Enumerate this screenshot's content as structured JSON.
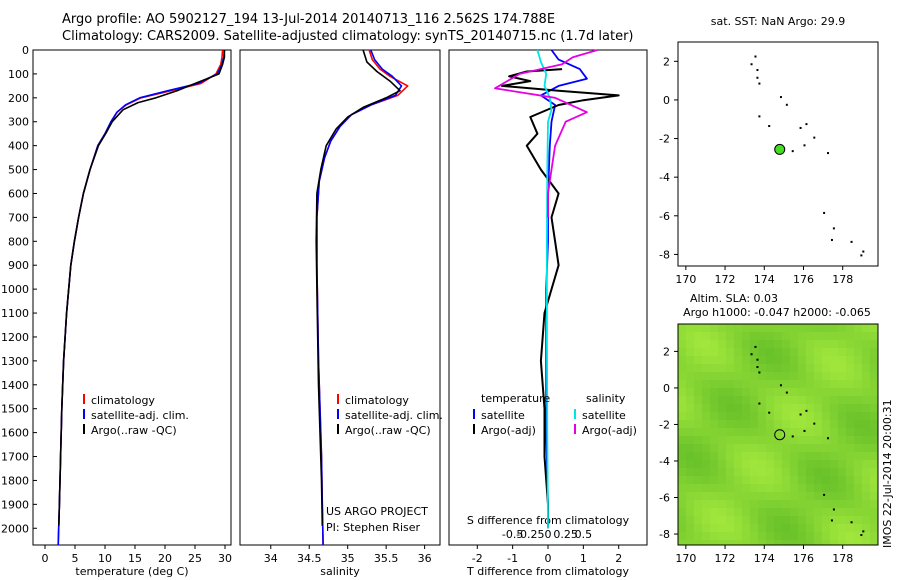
{
  "header": {
    "line1": "Argo profile: AO 5902127_194 13-Jul-2014 20140713_116 2.562S 174.788E",
    "line2": "Climatology: CARS2009. Satellite-adjusted climatology: synTS_20140715.nc (1.7d later)"
  },
  "colors": {
    "climatology": "#ff0000",
    "satellite": "#0000ff",
    "argo": "#000000",
    "sal_satellite": "#00e5e5",
    "sal_argo": "#e600e6",
    "land": "#000000",
    "sla_field": "#7fd22a",
    "float_marker": "#44dd22"
  },
  "chart_data": [
    {
      "type": "line",
      "panel": "temperature",
      "xlabel": "temperature (deg C)",
      "ylabel": "",
      "xlim": [
        -2,
        31
      ],
      "ylim": [
        2070,
        0
      ],
      "xticks": [
        0,
        5,
        10,
        15,
        20,
        25,
        30
      ],
      "xtick_labels": [
        "0",
        "5",
        "10",
        "15",
        "20",
        "25",
        "30"
      ],
      "yticks": [
        0,
        100,
        200,
        300,
        400,
        500,
        600,
        700,
        800,
        900,
        1000,
        1100,
        1200,
        1300,
        1400,
        1500,
        1600,
        1700,
        1800,
        1900,
        2000
      ],
      "ytick_labels": [
        "0",
        "100",
        "200",
        "300",
        "400",
        "500",
        "600",
        "700",
        "800",
        "900",
        "1000",
        "1100",
        "1200",
        "1300",
        "1400",
        "1500",
        "1600",
        "1700",
        "1800",
        "1900",
        "2000"
      ],
      "legend": [
        "climatology",
        "satellite-adj. clim.",
        "Argo(..raw -QC)"
      ],
      "series": [
        {
          "name": "climatology",
          "color_key": "climatology",
          "x": [
            29.6,
            29.5,
            29.3,
            28.5,
            26,
            21,
            16,
            13.5,
            12,
            11,
            10,
            8.8,
            7.5,
            6.4,
            5.6,
            4.9,
            4.3,
            3.6,
            3.1,
            2.8,
            2.6,
            2.4,
            2.2
          ],
          "y": [
            0,
            30,
            60,
            100,
            140,
            170,
            200,
            230,
            260,
            300,
            350,
            400,
            500,
            600,
            700,
            800,
            900,
            1100,
            1300,
            1500,
            1700,
            1900,
            2070
          ]
        },
        {
          "name": "satellite-adj. clim.",
          "color_key": "satellite",
          "x": [
            29.9,
            29.8,
            29.5,
            28.7,
            25.5,
            20.5,
            15.8,
            13.4,
            12,
            11,
            10,
            8.8,
            7.5,
            6.4,
            5.6,
            4.9,
            4.3,
            3.6,
            3.1,
            2.8,
            2.6,
            2.4,
            2.2
          ],
          "y": [
            0,
            30,
            60,
            100,
            140,
            170,
            200,
            230,
            260,
            300,
            350,
            400,
            500,
            600,
            700,
            800,
            900,
            1100,
            1300,
            1500,
            1700,
            1900,
            2070
          ]
        },
        {
          "name": "Argo(..raw -QC)",
          "color_key": "argo",
          "x": [
            29.9,
            29.9,
            29.6,
            29,
            27,
            24,
            22,
            18.5,
            15.5,
            13,
            11.2,
            10.1,
            8.9,
            7.5,
            6.4,
            5.6,
            4.9,
            4.3,
            3.6,
            3.1,
            2.8,
            2.6,
            2.4,
            2.3
          ],
          "y": [
            0,
            30,
            60,
            100,
            120,
            150,
            170,
            200,
            220,
            250,
            300,
            350,
            400,
            500,
            600,
            700,
            800,
            900,
            1100,
            1300,
            1500,
            1700,
            1900,
            1990
          ]
        }
      ]
    },
    {
      "type": "line",
      "panel": "salinity",
      "xlabel": "salinity",
      "xlim": [
        33.6,
        36.2
      ],
      "ylim": [
        2070,
        0
      ],
      "xticks": [
        34,
        34.5,
        35,
        35.5,
        36
      ],
      "xtick_labels": [
        "34",
        "34.5",
        "35",
        "35.5",
        "36"
      ],
      "legend": [
        "climatology",
        "satellite-adj. clim.",
        "Argo(..raw -QC)"
      ],
      "annotation": [
        "US ARGO PROJECT",
        "PI: Stephen Riser"
      ],
      "series": [
        {
          "name": "climatology",
          "color_key": "climatology",
          "x": [
            35.28,
            35.32,
            35.42,
            35.55,
            35.78,
            35.65,
            35.3,
            35.05,
            34.9,
            34.78,
            34.7,
            34.63,
            34.6,
            34.6,
            34.61,
            34.62,
            34.64,
            34.66,
            34.67,
            34.68
          ],
          "y": [
            0,
            40,
            80,
            110,
            150,
            190,
            230,
            270,
            320,
            380,
            450,
            550,
            700,
            900,
            1100,
            1300,
            1500,
            1700,
            1900,
            2070
          ]
        },
        {
          "name": "satellite-adj. clim.",
          "color_key": "satellite",
          "x": [
            35.3,
            35.35,
            35.45,
            35.58,
            35.7,
            35.62,
            35.3,
            35.05,
            34.9,
            34.78,
            34.7,
            34.63,
            34.6,
            34.6,
            34.61,
            34.62,
            34.64,
            34.66,
            34.67,
            34.68
          ],
          "y": [
            0,
            40,
            80,
            110,
            150,
            190,
            230,
            270,
            320,
            380,
            450,
            550,
            700,
            900,
            1100,
            1300,
            1500,
            1700,
            1900,
            2070
          ]
        },
        {
          "name": "Argo(..raw -QC)",
          "color_key": "argo",
          "x": [
            35.2,
            35.25,
            35.38,
            35.55,
            35.68,
            35.5,
            35.2,
            35.0,
            34.85,
            34.72,
            34.65,
            34.6,
            34.59,
            34.6,
            34.61,
            34.62,
            34.64,
            34.66,
            34.67
          ],
          "y": [
            0,
            50,
            90,
            130,
            170,
            200,
            240,
            280,
            330,
            400,
            500,
            600,
            800,
            1000,
            1200,
            1400,
            1600,
            1800,
            1990
          ]
        }
      ]
    },
    {
      "type": "line",
      "panel": "difference",
      "xlabel": "T difference from climatology",
      "xlabel_top": "S difference from climatology",
      "xlim": [
        -2.8,
        2.8
      ],
      "ylim": [
        2070,
        0
      ],
      "xticks": [
        -2,
        -1,
        0,
        1,
        2
      ],
      "xtick_labels": [
        "-2",
        "-1",
        "0",
        "1",
        "2"
      ],
      "xticks_top_values": [
        -0.5,
        -0.25,
        0,
        0.25,
        0.5
      ],
      "xticks_top_labels": [
        "-0.5",
        "-0.25",
        "0",
        "0.25",
        "0.5"
      ],
      "legend_headers": [
        "temperature",
        "salinity"
      ],
      "legend": [
        "satellite",
        "Argo(-adj)",
        "satellite",
        "Argo(-adj)"
      ],
      "series": [
        {
          "name": "satellite",
          "group": "temperature",
          "color_key": "satellite",
          "x": [
            0.1,
            0.3,
            0.9,
            1.1,
            0.3,
            -0.2,
            0.2,
            0.1,
            0.05,
            0.0,
            0.0,
            -0.05,
            -0.05,
            -0.05,
            0.0,
            0.0
          ],
          "y": [
            0,
            40,
            80,
            120,
            150,
            190,
            230,
            300,
            400,
            600,
            800,
            1000,
            1300,
            1600,
            1900,
            2000
          ]
        },
        {
          "name": "Argo(-adj)",
          "group": "temperature",
          "color_key": "argo",
          "x": [
            0.4,
            -0.6,
            -1.1,
            -0.5,
            -1.3,
            0.3,
            2.0,
            1.0,
            0.3,
            -0.5,
            -0.3,
            -0.6,
            -0.2,
            0.3,
            0.1,
            0.2,
            0.3,
            -0.1,
            -0.2,
            -0.1,
            -0.1,
            0.0,
            0.0
          ],
          "y": [
            80,
            90,
            110,
            130,
            150,
            170,
            190,
            210,
            230,
            280,
            350,
            400,
            500,
            600,
            700,
            800,
            900,
            1100,
            1300,
            1500,
            1700,
            1900,
            1990
          ]
        },
        {
          "name": "satellite",
          "group": "salinity",
          "color_key": "sal_satellite",
          "x": [
            -0.3,
            -0.2,
            -0.05,
            -0.1,
            0.05,
            0.1,
            0.0,
            -0.02,
            -0.03,
            -0.03,
            -0.02,
            0.0
          ],
          "y": [
            0,
            50,
            100,
            150,
            200,
            250,
            300,
            500,
            800,
            1200,
            1600,
            2000
          ]
        },
        {
          "name": "Argo(-adj)",
          "group": "salinity",
          "color_key": "sal_argo",
          "x": [
            1.4,
            0.7,
            0.4,
            -0.8,
            -1.5,
            0.2,
            1.1,
            0.5,
            0.2,
            0.1,
            0.0,
            0.0
          ],
          "y": [
            0,
            30,
            60,
            100,
            160,
            200,
            260,
            300,
            400,
            500,
            600,
            700
          ]
        }
      ]
    },
    {
      "type": "scatter",
      "panel": "sst_map",
      "title": "sat. SST: NaN Argo: 29.9",
      "xlim": [
        169.6,
        179.8
      ],
      "ylim": [
        -8.6,
        3.0
      ],
      "xticks": [
        170,
        172,
        174,
        176,
        178
      ],
      "xtick_labels": [
        "170",
        "172",
        "174",
        "176",
        "178"
      ],
      "yticks": [
        2,
        0,
        -2,
        -4,
        -6,
        -8
      ],
      "ytick_labels": [
        "2",
        "0",
        "-2",
        "-4",
        "-6",
        "-8"
      ],
      "float_position": [
        174.788,
        -2.562
      ]
    },
    {
      "type": "heatmap",
      "panel": "sla_map",
      "title": "Altim. SLA: 0.03",
      "subtitle": "Argo h1000: -0.047 h2000: -0.065",
      "xlim": [
        169.6,
        179.8
      ],
      "ylim": [
        -8.6,
        3.5
      ],
      "xticks": [
        170,
        172,
        174,
        176,
        178
      ],
      "xtick_labels": [
        "170",
        "172",
        "174",
        "176",
        "178"
      ],
      "yticks": [
        2,
        0,
        -2,
        -4,
        -6,
        -8
      ],
      "ytick_labels": [
        "2",
        "0",
        "-2",
        "-4",
        "-6",
        "-8"
      ],
      "float_position": [
        174.788,
        -2.562
      ]
    }
  ],
  "footer": {
    "stamp": "IMOS 22-Jul-2014 20:00:31"
  }
}
